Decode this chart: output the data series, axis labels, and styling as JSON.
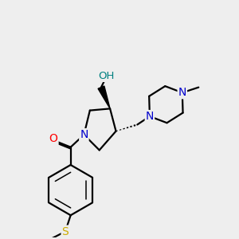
{
  "bg_color": "#eeeeee",
  "atom_colors": {
    "C": "#000000",
    "N": "#0000cc",
    "O": "#ff0000",
    "S": "#ccaa00",
    "H_O": "#008080"
  },
  "bond_color": "#000000",
  "bond_width": 1.6,
  "font_size_atoms": 9.5
}
